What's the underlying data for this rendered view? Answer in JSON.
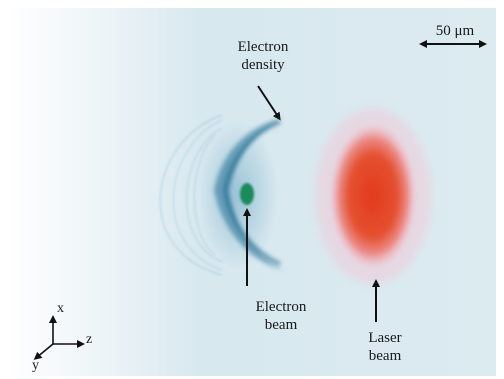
{
  "labels": {
    "electron_density": "Electron\ndensity",
    "electron_beam": "Electron\nbeam",
    "laser_beam": "Laser\nbeam",
    "scale_bar": "50 μm"
  },
  "axes": {
    "x": "x",
    "y": "y",
    "z": "z"
  },
  "colors": {
    "background": "#dbe9ee",
    "density_wave": "#1f6f94",
    "electron_beam": "#1b8a5a",
    "laser_center": "#e0432a",
    "laser_edge": "#f0a6b4"
  }
}
